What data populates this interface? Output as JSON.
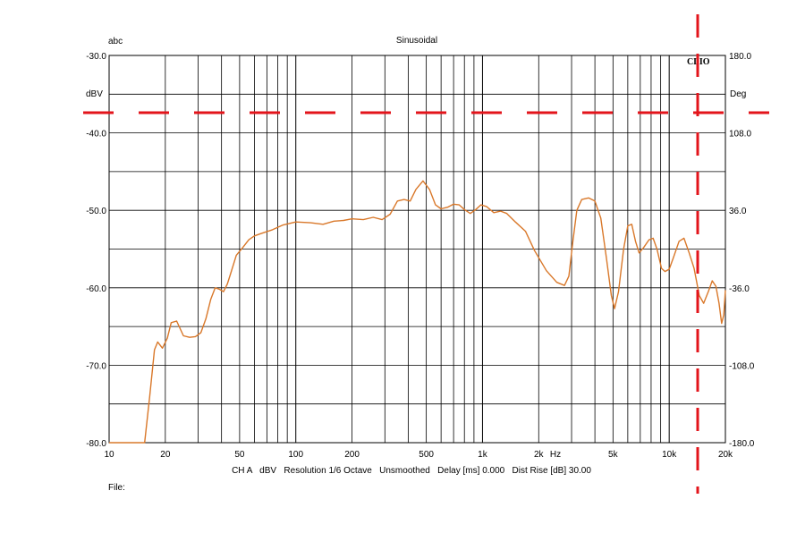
{
  "chart_data": {
    "type": "line",
    "title": "Sinusoidal",
    "top_left_label": "abc",
    "brand": "CLIO",
    "left_unit": "dBV",
    "right_unit": "Deg",
    "x_unit": "Hz",
    "x_scale": "log",
    "xlim": [
      10,
      20000
    ],
    "ylim": [
      -80,
      -30
    ],
    "y2lim": [
      -180,
      180
    ],
    "y_ticks": [
      "-30.0",
      "-40.0",
      "-50.0",
      "-60.0",
      "-70.0",
      "-80.0"
    ],
    "y2_ticks": [
      "180.0",
      "108.0",
      "36.0",
      "-36.0",
      "-108.0",
      "-180.0"
    ],
    "x_ticks": [
      {
        "v": 10,
        "label": "10"
      },
      {
        "v": 20,
        "label": "20"
      },
      {
        "v": 50,
        "label": "50"
      },
      {
        "v": 100,
        "label": "100"
      },
      {
        "v": 200,
        "label": "200"
      },
      {
        "v": 500,
        "label": "500"
      },
      {
        "v": 1000,
        "label": "1k"
      },
      {
        "v": 2000,
        "label": "2k"
      },
      {
        "v": 5000,
        "label": "5k"
      },
      {
        "v": 10000,
        "label": "10k"
      },
      {
        "v": 20000,
        "label": "20k"
      }
    ],
    "footer": "CH A   dBV   Resolution 1/6 Octave   Unsmoothed   Delay [ms] 0.000   Dist Rise [dB] 30.00",
    "file_label": "File:",
    "grid": true,
    "series": [
      {
        "color": "#d9782a",
        "points": [
          [
            10,
            -80
          ],
          [
            15.5,
            -80
          ],
          [
            16.5,
            -74
          ],
          [
            17.5,
            -68
          ],
          [
            18.2,
            -67
          ],
          [
            19.3,
            -67.8
          ],
          [
            20.5,
            -66.5
          ],
          [
            21.5,
            -64.5
          ],
          [
            23,
            -64.3
          ],
          [
            25,
            -66.2
          ],
          [
            27,
            -66.4
          ],
          [
            29,
            -66.3
          ],
          [
            31,
            -65.8
          ],
          [
            33,
            -64
          ],
          [
            35,
            -61.5
          ],
          [
            37,
            -60
          ],
          [
            39,
            -60.2
          ],
          [
            41,
            -60.5
          ],
          [
            43,
            -59.5
          ],
          [
            45,
            -58
          ],
          [
            48,
            -55.8
          ],
          [
            52,
            -54.8
          ],
          [
            56,
            -53.8
          ],
          [
            60,
            -53.3
          ],
          [
            65,
            -53
          ],
          [
            75,
            -52.5
          ],
          [
            85,
            -51.9
          ],
          [
            100,
            -51.5
          ],
          [
            120,
            -51.6
          ],
          [
            140,
            -51.8
          ],
          [
            160,
            -51.4
          ],
          [
            180,
            -51.3
          ],
          [
            200,
            -51.1
          ],
          [
            230,
            -51.2
          ],
          [
            260,
            -50.9
          ],
          [
            290,
            -51.2
          ],
          [
            320,
            -50.5
          ],
          [
            350,
            -48.8
          ],
          [
            380,
            -48.6
          ],
          [
            410,
            -48.8
          ],
          [
            440,
            -47.3
          ],
          [
            480,
            -46.2
          ],
          [
            520,
            -47.3
          ],
          [
            560,
            -49.3
          ],
          [
            600,
            -49.8
          ],
          [
            650,
            -49.6
          ],
          [
            700,
            -49.2
          ],
          [
            750,
            -49.3
          ],
          [
            800,
            -49.9
          ],
          [
            860,
            -50.4
          ],
          [
            920,
            -49.9
          ],
          [
            980,
            -49.3
          ],
          [
            1050,
            -49.5
          ],
          [
            1150,
            -50.3
          ],
          [
            1250,
            -50.1
          ],
          [
            1350,
            -50.4
          ],
          [
            1500,
            -51.5
          ],
          [
            1700,
            -52.7
          ],
          [
            1900,
            -55.2
          ],
          [
            2200,
            -57.8
          ],
          [
            2500,
            -59.3
          ],
          [
            2750,
            -59.7
          ],
          [
            2900,
            -58.5
          ],
          [
            3050,
            -54
          ],
          [
            3200,
            -50
          ],
          [
            3400,
            -48.6
          ],
          [
            3700,
            -48.4
          ],
          [
            4000,
            -48.8
          ],
          [
            4300,
            -51
          ],
          [
            4600,
            -56
          ],
          [
            4900,
            -61
          ],
          [
            5100,
            -62.7
          ],
          [
            5350,
            -60.5
          ],
          [
            5700,
            -55
          ],
          [
            6000,
            -52
          ],
          [
            6300,
            -51.8
          ],
          [
            6600,
            -54
          ],
          [
            6900,
            -55.5
          ],
          [
            7300,
            -54.8
          ],
          [
            7800,
            -53.8
          ],
          [
            8200,
            -53.6
          ],
          [
            8600,
            -55
          ],
          [
            9100,
            -57.5
          ],
          [
            9500,
            -57.9
          ],
          [
            10000,
            -57.6
          ],
          [
            10500,
            -56.2
          ],
          [
            11300,
            -54
          ],
          [
            12000,
            -53.6
          ],
          [
            12800,
            -55.5
          ],
          [
            13600,
            -57.5
          ],
          [
            14500,
            -61
          ],
          [
            15300,
            -62
          ],
          [
            16200,
            -60.5
          ],
          [
            17000,
            -59.1
          ],
          [
            17800,
            -59.8
          ],
          [
            18500,
            -62
          ],
          [
            19100,
            -64.6
          ],
          [
            19600,
            -63.5
          ],
          [
            20000,
            -60.3
          ]
        ]
      }
    ]
  }
}
